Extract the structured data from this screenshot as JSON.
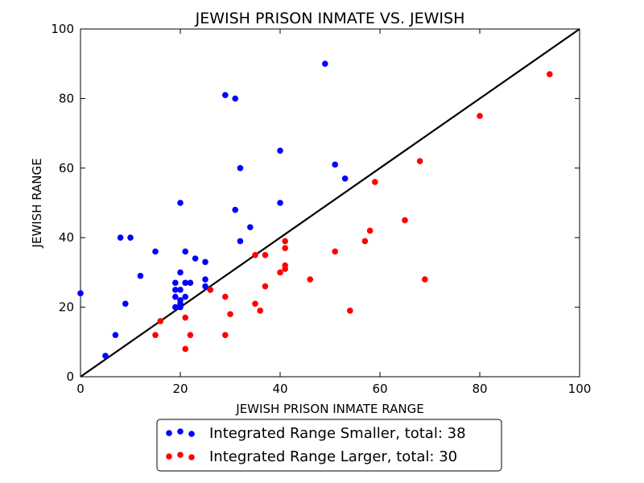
{
  "chart_data": {
    "type": "scatter",
    "title": "JEWISH PRISON INMATE VS. JEWISH",
    "xlabel": "JEWISH PRISON INMATE RANGE",
    "ylabel": "JEWISH RANGE",
    "xlim": [
      0,
      100
    ],
    "ylim": [
      0,
      100
    ],
    "xticks": [
      0,
      20,
      40,
      60,
      80,
      100
    ],
    "yticks": [
      0,
      20,
      40,
      60,
      80,
      100
    ],
    "grid": false,
    "legend_position": "bottom-center-outside",
    "reference_line": {
      "from": [
        0,
        0
      ],
      "to": [
        100,
        100
      ],
      "color": "#000000"
    },
    "series": [
      {
        "name": "Integrated Range Smaller, total: 38",
        "color": "#0000ff",
        "points": [
          [
            0,
            24
          ],
          [
            5,
            6
          ],
          [
            7,
            12
          ],
          [
            8,
            40
          ],
          [
            9,
            21
          ],
          [
            10,
            40
          ],
          [
            12,
            29
          ],
          [
            15,
            36
          ],
          [
            19,
            20
          ],
          [
            19,
            23
          ],
          [
            19,
            25
          ],
          [
            19,
            27
          ],
          [
            20,
            21
          ],
          [
            20,
            22
          ],
          [
            20,
            25
          ],
          [
            20,
            30
          ],
          [
            20,
            50
          ],
          [
            21,
            23
          ],
          [
            21,
            27
          ],
          [
            21,
            36
          ],
          [
            22,
            27
          ],
          [
            23,
            34
          ],
          [
            25,
            26
          ],
          [
            25,
            28
          ],
          [
            25,
            33
          ],
          [
            29,
            81
          ],
          [
            31,
            80
          ],
          [
            31,
            48
          ],
          [
            32,
            39
          ],
          [
            32,
            60
          ],
          [
            34,
            43
          ],
          [
            40,
            50
          ],
          [
            40,
            65
          ],
          [
            49,
            90
          ],
          [
            51,
            61
          ],
          [
            53,
            57
          ],
          [
            26,
            25
          ],
          [
            20,
            20
          ]
        ]
      },
      {
        "name": "Integrated Range Larger, total: 30",
        "color": "#ff0000",
        "points": [
          [
            15,
            12
          ],
          [
            16,
            16
          ],
          [
            21,
            8
          ],
          [
            21,
            17
          ],
          [
            22,
            12
          ],
          [
            26,
            25
          ],
          [
            29,
            12
          ],
          [
            29,
            23
          ],
          [
            30,
            18
          ],
          [
            35,
            21
          ],
          [
            35,
            35
          ],
          [
            36,
            19
          ],
          [
            37,
            26
          ],
          [
            37,
            35
          ],
          [
            40,
            30
          ],
          [
            41,
            31
          ],
          [
            41,
            32
          ],
          [
            41,
            37
          ],
          [
            41,
            39
          ],
          [
            46,
            28
          ],
          [
            51,
            36
          ],
          [
            54,
            19
          ],
          [
            57,
            39
          ],
          [
            58,
            42
          ],
          [
            59,
            56
          ],
          [
            65,
            45
          ],
          [
            68,
            62
          ],
          [
            69,
            28
          ],
          [
            80,
            75
          ],
          [
            94,
            87
          ]
        ]
      }
    ]
  }
}
